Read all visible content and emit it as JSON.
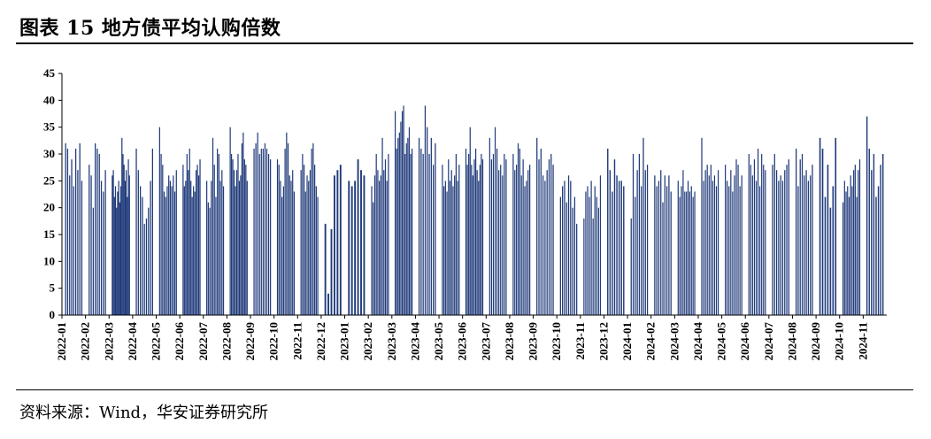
{
  "header": {
    "title": "图表 15 地方债平均认购倍数"
  },
  "footer": {
    "source": "资料来源：Wind，华安证券研究所"
  },
  "colors": {
    "bar": "#1f3a7a",
    "axis": "#000000"
  },
  "chart_data": {
    "type": "bar",
    "title": "",
    "xlabel": "",
    "ylabel": "",
    "ylim": [
      0,
      45
    ],
    "yticks": [
      0,
      5,
      10,
      15,
      20,
      25,
      30,
      35,
      40,
      45
    ],
    "x_tick_labels": [
      "2022-01",
      "2022-02",
      "2022-03",
      "2022-04",
      "2022-05",
      "2022-06",
      "2022-07",
      "2022-08",
      "2022-09",
      "2022-10",
      "2022-11",
      "2022-12",
      "2023-01",
      "2023-02",
      "2023-03",
      "2023-04",
      "2023-05",
      "2023-06",
      "2023-07",
      "2023-08",
      "2023-09",
      "2023-10",
      "2023-11",
      "2023-12",
      "2024-01",
      "2024-02",
      "2024-03",
      "2024-04",
      "2024-05",
      "2024-06",
      "2024-07",
      "2024-08",
      "2024-09",
      "2024-10",
      "2024-11"
    ],
    "months": [
      {
        "label": "2022-01",
        "values": [
          32,
          31,
          26,
          29,
          24,
          31,
          27,
          32,
          25
        ]
      },
      {
        "label": "2022-02",
        "values": [
          28,
          26,
          20,
          32,
          31,
          30,
          25,
          23,
          27
        ]
      },
      {
        "label": "2022-03",
        "values": [
          26,
          27,
          22,
          24,
          20,
          23,
          25,
          21,
          24,
          33,
          30,
          28,
          25,
          27,
          22,
          29,
          26
        ]
      },
      {
        "label": "2022-04",
        "values": [
          31,
          27,
          24,
          22,
          17,
          18,
          20,
          25,
          31
        ]
      },
      {
        "label": "2022-05",
        "values": [
          35,
          30,
          28,
          23,
          22,
          24,
          26,
          25,
          24,
          26,
          23,
          27
        ]
      },
      {
        "label": "2022-06",
        "values": [
          28,
          24,
          25,
          30,
          27,
          31,
          25,
          22,
          24,
          23,
          27,
          28,
          26,
          29
        ]
      },
      {
        "label": "2022-07",
        "values": [
          25,
          21,
          20,
          25,
          33,
          28,
          22,
          31,
          30,
          25,
          27,
          24
        ]
      },
      {
        "label": "2022-08",
        "values": [
          35,
          30,
          29,
          27,
          24,
          27,
          30,
          25,
          26,
          32,
          34,
          29,
          28,
          25
        ]
      },
      {
        "label": "2022-09",
        "values": [
          31,
          32,
          34,
          30,
          31,
          31,
          32,
          31,
          30,
          29
        ]
      },
      {
        "label": "2022-10",
        "values": [
          29,
          28,
          25,
          22,
          24,
          31,
          34,
          32,
          26,
          25,
          27,
          23
        ]
      },
      {
        "label": "2022-11",
        "values": [
          27,
          30,
          28,
          23,
          26,
          25,
          27,
          31,
          32,
          28,
          24,
          22
        ]
      },
      {
        "label": "2022-12",
        "values": [
          17,
          4,
          16,
          26,
          27,
          28
        ]
      },
      {
        "label": "2023-01",
        "values": [
          25,
          24,
          25,
          29,
          27,
          26
        ]
      },
      {
        "label": "2023-02",
        "values": [
          24,
          21,
          26,
          30,
          27,
          25,
          26,
          33,
          27,
          29,
          25,
          30
        ]
      },
      {
        "label": "2023-03",
        "values": [
          38,
          31,
          33,
          34,
          36,
          38,
          39,
          30,
          32,
          33,
          35,
          30,
          31
        ]
      },
      {
        "label": "2023-04",
        "values": [
          33,
          31,
          30,
          39,
          35,
          30,
          33,
          28,
          32
        ]
      },
      {
        "label": "2023-05",
        "values": [
          28,
          24,
          25,
          23,
          29,
          25,
          27,
          24,
          26,
          30,
          25,
          28
        ]
      },
      {
        "label": "2023-06",
        "values": [
          31,
          28,
          30,
          35,
          28,
          26,
          29,
          31,
          27,
          25,
          28,
          30,
          29
        ]
      },
      {
        "label": "2023-07",
        "values": [
          33,
          29,
          30,
          35,
          31,
          27,
          28,
          26,
          30,
          29
        ]
      },
      {
        "label": "2023-08",
        "values": [
          30,
          27,
          28,
          32,
          31,
          26,
          29,
          24,
          25,
          27,
          28
        ]
      },
      {
        "label": "2023-09",
        "values": [
          33,
          29,
          31,
          26,
          25,
          27,
          29,
          30,
          28
        ]
      },
      {
        "label": "2023-10",
        "values": [
          22,
          24,
          25,
          21,
          26,
          25,
          20,
          22,
          17
        ]
      },
      {
        "label": "2023-11",
        "values": [
          18,
          23,
          24,
          22,
          25,
          18,
          24,
          22,
          20,
          26
        ]
      },
      {
        "label": "2023-12",
        "values": [
          31,
          27,
          23,
          29,
          26,
          25,
          25,
          24
        ]
      },
      {
        "label": "2024-01",
        "values": [
          18,
          30,
          22,
          27,
          30,
          24,
          33,
          27,
          28
        ]
      },
      {
        "label": "2024-02",
        "values": [
          26,
          24,
          25,
          27,
          21,
          26,
          24,
          26,
          23
        ]
      },
      {
        "label": "2024-03",
        "values": [
          25,
          22,
          24,
          27,
          23,
          23,
          25,
          23,
          24,
          22,
          23
        ]
      },
      {
        "label": "2024-04",
        "values": [
          33,
          25,
          27,
          28,
          26,
          28,
          25,
          26,
          24,
          27
        ]
      },
      {
        "label": "2024-05",
        "values": [
          28,
          25,
          24,
          27,
          23,
          26,
          29,
          28,
          24,
          26
        ]
      },
      {
        "label": "2024-06",
        "values": [
          30,
          28,
          26,
          29,
          25,
          31,
          24,
          30,
          28,
          27
        ]
      },
      {
        "label": "2024-07",
        "values": [
          28,
          30,
          27,
          25,
          26,
          25,
          27,
          28,
          29
        ]
      },
      {
        "label": "2024-08",
        "values": [
          31,
          24,
          29,
          30,
          26,
          27,
          25,
          26,
          28
        ]
      },
      {
        "label": "2024-09",
        "values": [
          33,
          31,
          22,
          28,
          20,
          24,
          33
        ]
      },
      {
        "label": "2024-10",
        "values": [
          21,
          25,
          23,
          24,
          22,
          26,
          24,
          27,
          28,
          22,
          27,
          29
        ]
      },
      {
        "label": "2024-11",
        "values": [
          37,
          31,
          27,
          30,
          22,
          24,
          28,
          30
        ]
      }
    ]
  }
}
